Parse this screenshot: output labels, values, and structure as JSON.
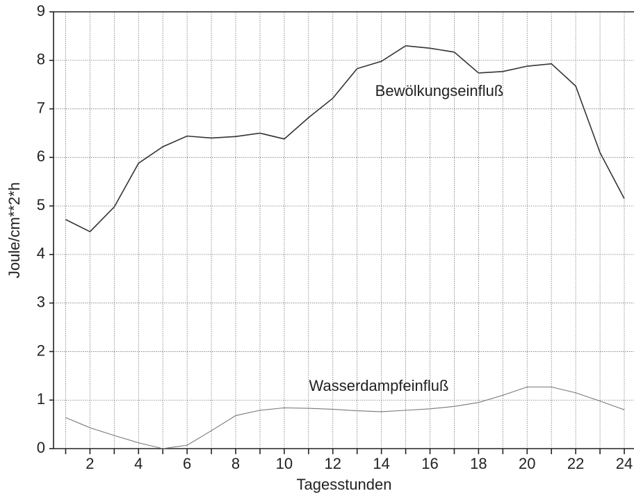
{
  "chart_data": {
    "type": "line",
    "x_label": "Tagesstunden",
    "y_label": "Joule/cm**2*h",
    "x": [
      1,
      2,
      3,
      4,
      5,
      6,
      7,
      8,
      9,
      10,
      11,
      12,
      13,
      14,
      15,
      16,
      17,
      18,
      19,
      20,
      21,
      22,
      23,
      24
    ],
    "series": [
      {
        "name": "Bewölkungseinfluß",
        "color": "#333333",
        "values": [
          4.72,
          4.47,
          4.98,
          5.88,
          6.22,
          6.44,
          6.4,
          6.43,
          6.5,
          6.38,
          6.82,
          7.22,
          7.83,
          7.98,
          8.3,
          8.25,
          8.17,
          7.74,
          7.77,
          7.88,
          7.93,
          7.47,
          6.1,
          5.15
        ]
      },
      {
        "name": "Wasserdampfeinfluß",
        "color": "#777777",
        "values": [
          0.64,
          0.43,
          0.27,
          0.12,
          0.0,
          0.07,
          0.37,
          0.68,
          0.79,
          0.84,
          0.83,
          0.81,
          0.78,
          0.76,
          0.79,
          0.82,
          0.87,
          0.95,
          1.1,
          1.27,
          1.27,
          1.15,
          0.98,
          0.8
        ]
      }
    ],
    "xlim": [
      0.5,
      24.4
    ],
    "ylim": [
      0,
      9
    ],
    "xticks": [
      2,
      4,
      6,
      8,
      10,
      12,
      14,
      16,
      18,
      20,
      22,
      24
    ],
    "xminorticks": [
      1,
      2,
      3,
      4,
      5,
      6,
      7,
      8,
      9,
      10,
      11,
      12,
      13,
      14,
      15,
      16,
      17,
      18,
      19,
      20,
      21,
      22,
      23,
      24
    ],
    "yticks": [
      0,
      1,
      2,
      3,
      4,
      5,
      6,
      7,
      8,
      9
    ],
    "grid": true
  }
}
